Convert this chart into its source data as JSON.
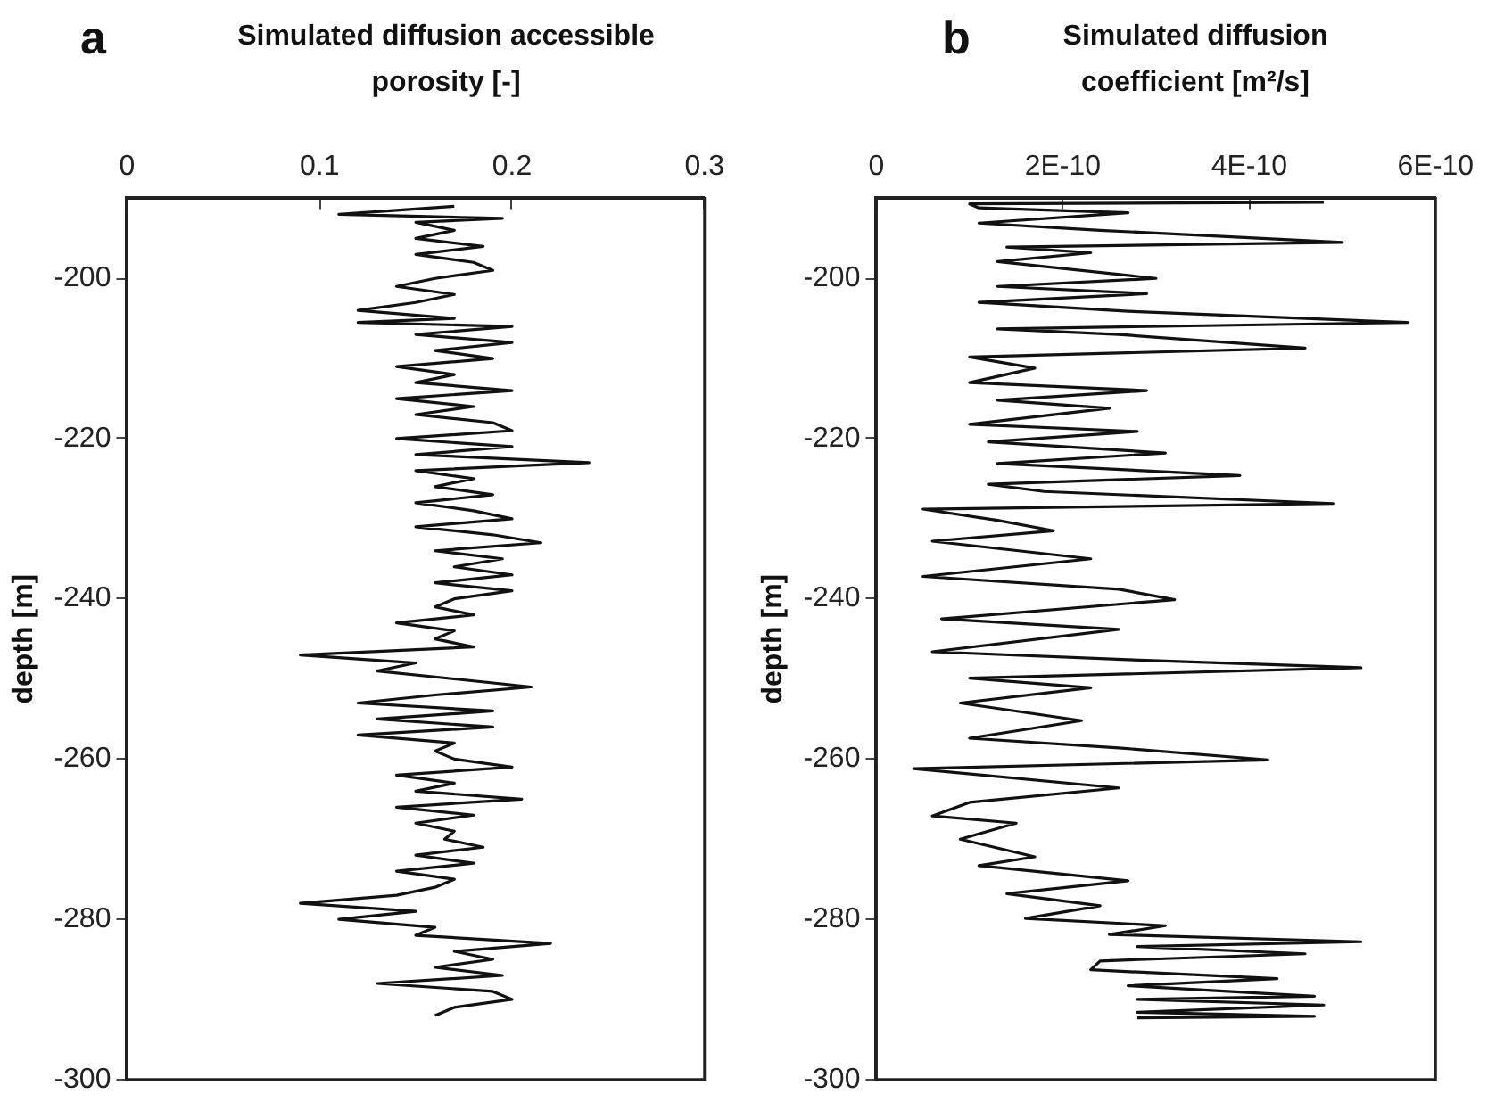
{
  "chart_data": [
    {
      "type": "line",
      "title": "a",
      "xlabel": "Simulated diffusion accessible porosity [-]",
      "ylabel": "depth [m]",
      "xlim": [
        0,
        0.3
      ],
      "xticks": [
        0,
        0.1,
        0.2,
        0.3
      ],
      "ylim": [
        -300,
        -190
      ],
      "yticks": [
        -300,
        -280,
        -260,
        -240,
        -220,
        -200
      ],
      "grid": false,
      "legend": false,
      "marker": "none",
      "series": [
        {
          "color": "#111111",
          "x": [
            0.17,
            0.11,
            0.195,
            0.15,
            0.17,
            0.15,
            0.185,
            0.15,
            0.18,
            0.19,
            0.16,
            0.14,
            0.17,
            0.15,
            0.12,
            0.17,
            0.12,
            0.2,
            0.15,
            0.2,
            0.16,
            0.19,
            0.14,
            0.17,
            0.15,
            0.2,
            0.14,
            0.18,
            0.15,
            0.19,
            0.2,
            0.14,
            0.2,
            0.15,
            0.24,
            0.15,
            0.18,
            0.16,
            0.19,
            0.15,
            0.18,
            0.2,
            0.15,
            0.19,
            0.215,
            0.16,
            0.195,
            0.17,
            0.2,
            0.16,
            0.2,
            0.17,
            0.16,
            0.18,
            0.14,
            0.17,
            0.16,
            0.18,
            0.09,
            0.15,
            0.13,
            0.17,
            0.21,
            0.16,
            0.12,
            0.19,
            0.13,
            0.19,
            0.12,
            0.17,
            0.16,
            0.17,
            0.2,
            0.14,
            0.17,
            0.15,
            0.205,
            0.14,
            0.18,
            0.15,
            0.17,
            0.165,
            0.185,
            0.15,
            0.18,
            0.14,
            0.17,
            0.16,
            0.14,
            0.09,
            0.15,
            0.11,
            0.16,
            0.15,
            0.22,
            0.17,
            0.19,
            0.16,
            0.195,
            0.13,
            0.19,
            0.2,
            0.17,
            0.16
          ],
          "values": [
            -191,
            -192,
            -192.5,
            -193,
            -194,
            -195,
            -196,
            -197,
            -198,
            -199,
            -200,
            -201,
            -202,
            -203,
            -204,
            -205,
            -205.5,
            -206,
            -207,
            -208,
            -209,
            -210,
            -211,
            -212,
            -213,
            -214,
            -215,
            -216,
            -217,
            -218,
            -219,
            -220,
            -221,
            -222,
            -223,
            -224,
            -225,
            -226,
            -227,
            -228,
            -229,
            -230,
            -231,
            -232,
            -233,
            -234,
            -235,
            -236,
            -237,
            -238,
            -239,
            -240,
            -241,
            -242,
            -243,
            -244,
            -245,
            -246,
            -247,
            -248,
            -249,
            -250,
            -251,
            -252,
            -253,
            -254,
            -255,
            -256,
            -257,
            -258,
            -259,
            -260,
            -261,
            -262,
            -263,
            -264,
            -265,
            -266,
            -267,
            -268,
            -269,
            -270,
            -271,
            -272,
            -273,
            -274,
            -275,
            -276,
            -277,
            -278,
            -279,
            -280,
            -281,
            -282,
            -283,
            -284,
            -285,
            -286,
            -287,
            -288,
            -289,
            -290,
            -291,
            -292
          ]
        }
      ]
    },
    {
      "type": "line",
      "title": "b",
      "xlabel": "Simulated diffusion coefficient [m²/s]",
      "ylabel": "depth [m]",
      "xlim": [
        0,
        6e-10
      ],
      "xticks": [
        0,
        {
          "value": 2e-10,
          "label": "2E-10"
        },
        {
          "value": 4e-10,
          "label": "4E-10"
        },
        {
          "value": 6e-10,
          "label": "6E-10"
        }
      ],
      "ylim": [
        -300,
        -190
      ],
      "yticks": [
        -300,
        -280,
        -260,
        -240,
        -220,
        -200
      ],
      "grid": false,
      "legend": false,
      "marker": "none",
      "series": [
        {
          "color": "#111111",
          "x": [
            4.8e-10,
            1e-10,
            1.1e-10,
            2.7e-10,
            1.1e-10,
            2.4e-10,
            5e-10,
            1.4e-10,
            2.3e-10,
            1.3e-10,
            3e-10,
            1.3e-10,
            2.9e-10,
            1.1e-10,
            2.7e-10,
            5.7e-10,
            1.3e-10,
            2.6e-10,
            4.6e-10,
            1e-10,
            1.7e-10,
            1e-10,
            2.9e-10,
            1.3e-10,
            2.5e-10,
            1e-10,
            2.8e-10,
            1.2e-10,
            3.1e-10,
            1.3e-10,
            3.9e-10,
            1.2e-10,
            1.8e-10,
            4.9e-10,
            5e-11,
            1.3e-10,
            1.9e-10,
            6e-11,
            2.3e-10,
            5e-11,
            2.6e-10,
            3.2e-10,
            7e-11,
            2.6e-10,
            6e-11,
            2.7e-10,
            5.2e-10,
            1e-10,
            2.3e-10,
            9e-11,
            2.2e-10,
            1e-10,
            2.6e-10,
            4.2e-10,
            4e-11,
            2.6e-10,
            1e-10,
            6e-11,
            1.5e-10,
            9e-11,
            1.7e-10,
            1.1e-10,
            2.7e-10,
            1.4e-10,
            2.4e-10,
            1.6e-10,
            3.1e-10,
            2.5e-10,
            5.2e-10,
            2.8e-10,
            4.6e-10,
            2.4e-10,
            2.3e-10,
            4.3e-10,
            2.7e-10,
            4.7e-10,
            2.8e-10,
            4.8e-10,
            2.8e-10,
            4.7e-10,
            2.8e-10
          ],
          "values": [
            -190.5,
            -190.7,
            -191.2,
            -191.8,
            -193.1,
            -194,
            -195.5,
            -196.1,
            -196.8,
            -197.9,
            -200,
            -201,
            -201.9,
            -203,
            -204.1,
            -205.5,
            -206.3,
            -207,
            -208.7,
            -209.8,
            -211.2,
            -213,
            -214,
            -215.2,
            -216.2,
            -218.2,
            -219.1,
            -220.4,
            -221.8,
            -223.1,
            -224.6,
            -225.7,
            -226.6,
            -228.1,
            -228.8,
            -230.2,
            -231.5,
            -232.8,
            -235,
            -237.2,
            -238.8,
            -240.1,
            -242.5,
            -243.8,
            -246.6,
            -247.6,
            -248.6,
            -249.9,
            -251.1,
            -253,
            -255.2,
            -257.4,
            -258.6,
            -260.1,
            -261.2,
            -263.6,
            -265.4,
            -267.1,
            -268,
            -270,
            -272.2,
            -273.3,
            -275.2,
            -276.8,
            -278.3,
            -279.9,
            -280.8,
            -281.9,
            -282.8,
            -283.4,
            -284.3,
            -285.2,
            -286.3,
            -287.4,
            -288.3,
            -289.6,
            -290,
            -290.7,
            -291.6,
            -292.1,
            -292.3
          ]
        }
      ]
    }
  ]
}
